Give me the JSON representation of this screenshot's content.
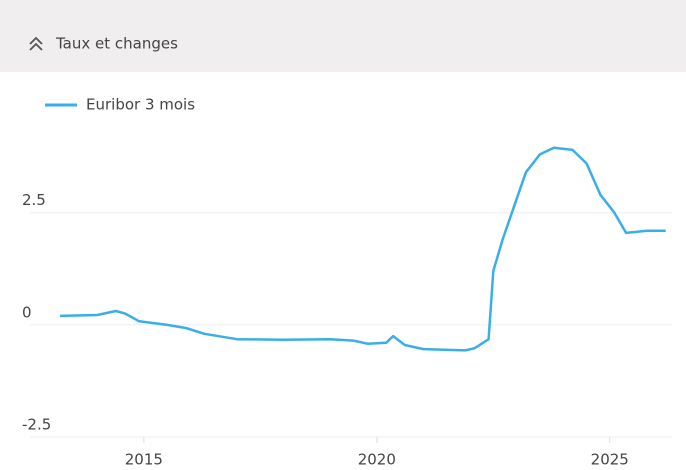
{
  "header": {
    "title": "Taux et changes"
  },
  "chart_data": {
    "type": "line",
    "x": [
      2013.2,
      2014.0,
      2014.4,
      2014.6,
      2014.9,
      2015.5,
      2015.9,
      2016.3,
      2017.0,
      2018.0,
      2019.0,
      2019.5,
      2019.8,
      2020.2,
      2020.35,
      2020.6,
      2021.0,
      2021.9,
      2022.1,
      2022.4,
      2022.5,
      2022.7,
      2022.9,
      2023.2,
      2023.5,
      2023.8,
      2024.2,
      2024.5,
      2024.8,
      2025.1,
      2025.35,
      2025.8,
      2026.2
    ],
    "series": [
      {
        "name": "Euribor 3 mois",
        "color": "#3aaee8",
        "values": [
          0.2,
          0.22,
          0.31,
          0.25,
          0.08,
          0.0,
          -0.07,
          -0.2,
          -0.32,
          -0.33,
          -0.32,
          -0.35,
          -0.42,
          -0.4,
          -0.25,
          -0.45,
          -0.54,
          -0.57,
          -0.52,
          -0.32,
          1.2,
          1.9,
          2.5,
          3.4,
          3.8,
          3.95,
          3.9,
          3.6,
          2.9,
          2.5,
          2.05,
          2.1,
          2.1
        ]
      }
    ],
    "xlim": [
      2013.2,
      2026.25
    ],
    "xticks": [
      2015,
      2020,
      2025
    ],
    "ylim": [
      -2.5,
      4.5
    ],
    "yticks": [
      -2.5,
      0,
      2.5
    ],
    "grid": true
  }
}
